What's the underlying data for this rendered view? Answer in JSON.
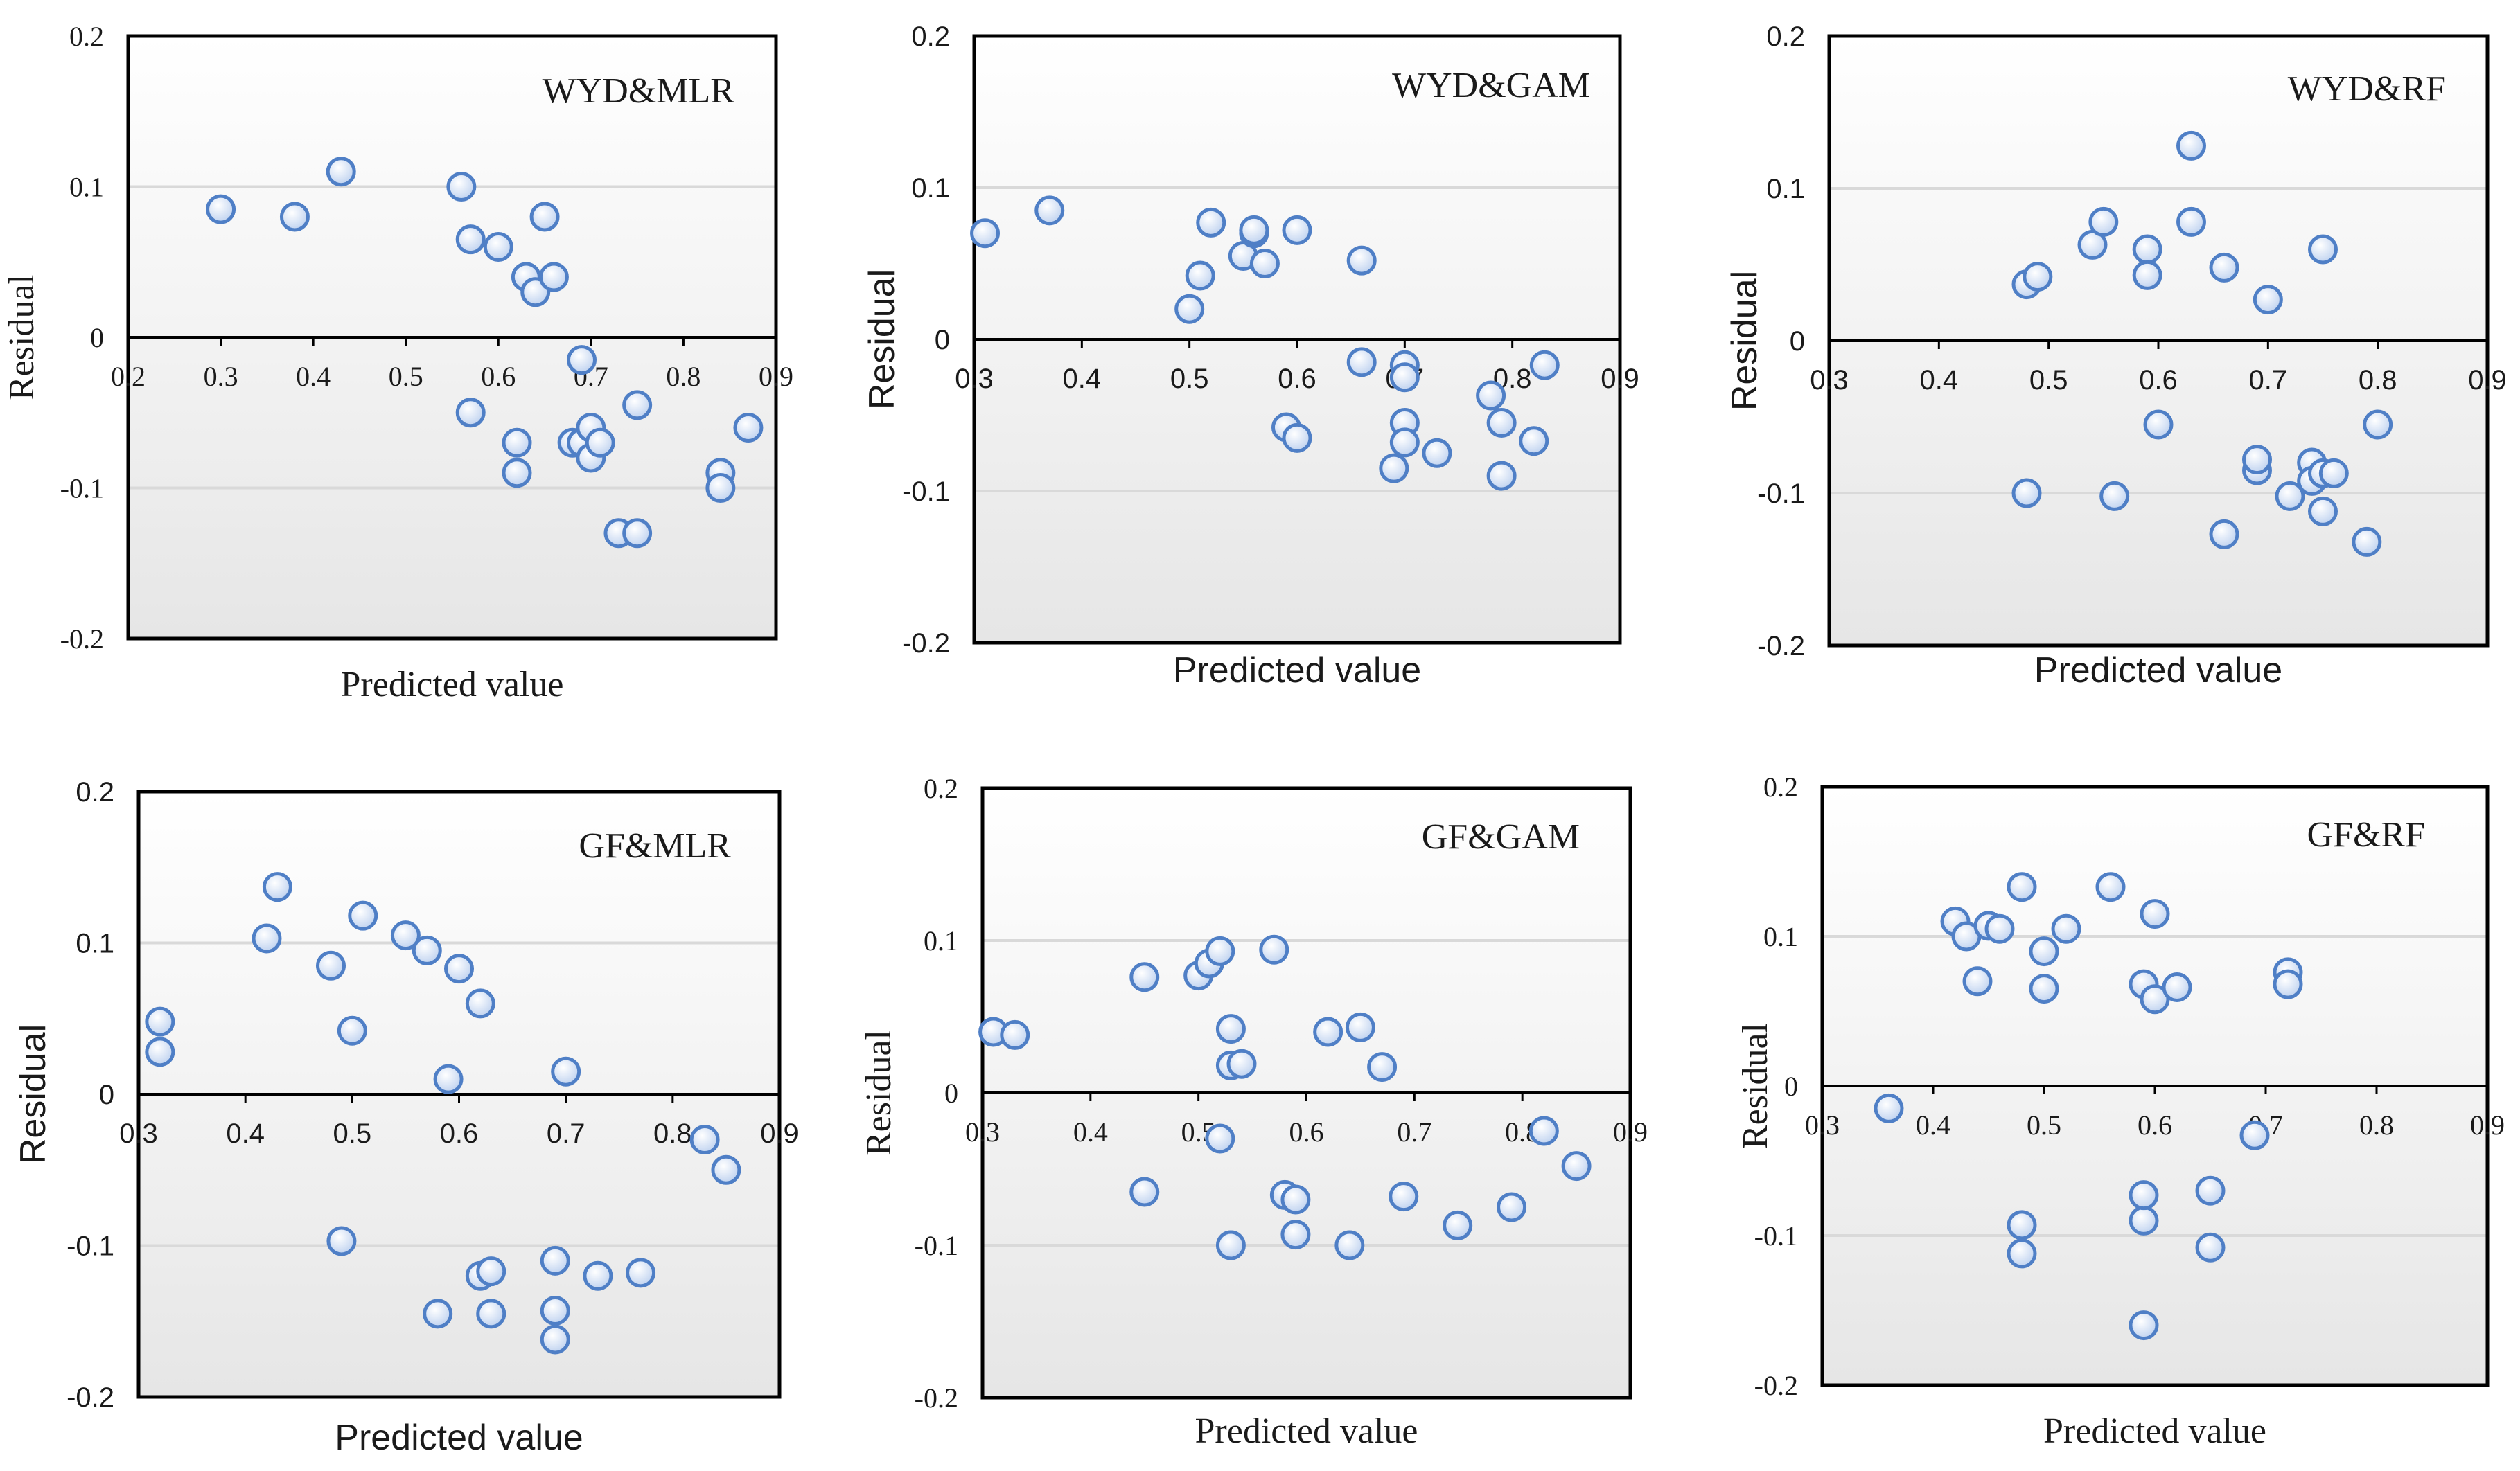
{
  "chart_data": [
    {
      "type": "scatter",
      "title": "WYD&MLR",
      "xlabel": "Predicted value",
      "ylabel": "Residual",
      "xlim": [
        0.2,
        0.9
      ],
      "ylim": [
        -0.2,
        0.2
      ],
      "xticks": [
        "0.2",
        "0.3",
        "0.4",
        "0.5",
        "0.6",
        "0.7",
        "0.8",
        "0.9"
      ],
      "yticks": [
        "0.2",
        "0.1",
        "0",
        "-0.1",
        "-0.2"
      ],
      "colors": {
        "marker_fill": "#cfdcf2",
        "marker_edge": "#4f7fc6",
        "gridline": "#d9d9d9"
      },
      "points": [
        {
          "x": 0.3,
          "y": 0.085
        },
        {
          "x": 0.38,
          "y": 0.08
        },
        {
          "x": 0.43,
          "y": 0.11
        },
        {
          "x": 0.56,
          "y": 0.1
        },
        {
          "x": 0.57,
          "y": 0.065
        },
        {
          "x": 0.6,
          "y": 0.06
        },
        {
          "x": 0.63,
          "y": 0.04
        },
        {
          "x": 0.64,
          "y": 0.03
        },
        {
          "x": 0.65,
          "y": 0.08
        },
        {
          "x": 0.66,
          "y": 0.04
        },
        {
          "x": 0.69,
          "y": -0.015
        },
        {
          "x": 0.57,
          "y": -0.05
        },
        {
          "x": 0.62,
          "y": -0.07
        },
        {
          "x": 0.62,
          "y": -0.09
        },
        {
          "x": 0.68,
          "y": -0.07
        },
        {
          "x": 0.69,
          "y": -0.07
        },
        {
          "x": 0.7,
          "y": -0.06
        },
        {
          "x": 0.7,
          "y": -0.08
        },
        {
          "x": 0.71,
          "y": -0.07
        },
        {
          "x": 0.75,
          "y": -0.045
        },
        {
          "x": 0.73,
          "y": -0.13
        },
        {
          "x": 0.75,
          "y": -0.13
        },
        {
          "x": 0.84,
          "y": -0.09
        },
        {
          "x": 0.84,
          "y": -0.1
        },
        {
          "x": 0.87,
          "y": -0.06
        }
      ]
    },
    {
      "type": "scatter",
      "title": "WYD&GAM",
      "xlabel": "Predicted value",
      "ylabel": "Residual",
      "xlim": [
        0.3,
        0.9
      ],
      "ylim": [
        -0.2,
        0.2
      ],
      "xticks": [
        "0.3",
        "0.4",
        "0.5",
        "0.6",
        "0.7",
        "0.8",
        "0.9"
      ],
      "yticks": [
        "0.2",
        "0.1",
        "0",
        "-0.1",
        "-0.2"
      ],
      "colors": {
        "marker_fill": "#cfdcf2",
        "marker_edge": "#4f7fc6",
        "gridline": "#d9d9d9"
      },
      "points": [
        {
          "x": 0.31,
          "y": 0.07
        },
        {
          "x": 0.37,
          "y": 0.085
        },
        {
          "x": 0.5,
          "y": 0.02
        },
        {
          "x": 0.51,
          "y": 0.042
        },
        {
          "x": 0.52,
          "y": 0.077
        },
        {
          "x": 0.55,
          "y": 0.055
        },
        {
          "x": 0.56,
          "y": 0.07
        },
        {
          "x": 0.56,
          "y": 0.072
        },
        {
          "x": 0.57,
          "y": 0.05
        },
        {
          "x": 0.6,
          "y": 0.072
        },
        {
          "x": 0.66,
          "y": 0.052
        },
        {
          "x": 0.66,
          "y": -0.015
        },
        {
          "x": 0.7,
          "y": -0.017
        },
        {
          "x": 0.7,
          "y": -0.025
        },
        {
          "x": 0.7,
          "y": -0.055
        },
        {
          "x": 0.7,
          "y": -0.068
        },
        {
          "x": 0.69,
          "y": -0.085
        },
        {
          "x": 0.73,
          "y": -0.075
        },
        {
          "x": 0.59,
          "y": -0.058
        },
        {
          "x": 0.6,
          "y": -0.065
        },
        {
          "x": 0.78,
          "y": -0.037
        },
        {
          "x": 0.79,
          "y": -0.055
        },
        {
          "x": 0.79,
          "y": -0.09
        },
        {
          "x": 0.83,
          "y": -0.017
        },
        {
          "x": 0.82,
          "y": -0.067
        }
      ]
    },
    {
      "type": "scatter",
      "title": "WYD&RF",
      "xlabel": "Predicted value",
      "ylabel": "Residual",
      "xlim": [
        0.3,
        0.9
      ],
      "ylim": [
        -0.2,
        0.2
      ],
      "xticks": [
        "0.3",
        "0.4",
        "0.5",
        "0.6",
        "0.7",
        "0.8",
        "0.9"
      ],
      "yticks": [
        "0.2",
        "0.1",
        "0",
        "-0.1",
        "-0.2"
      ],
      "colors": {
        "marker_fill": "#cfdcf2",
        "marker_edge": "#4f7fc6",
        "gridline": "#d9d9d9"
      },
      "points": [
        {
          "x": 0.48,
          "y": 0.037
        },
        {
          "x": 0.49,
          "y": 0.042
        },
        {
          "x": 0.54,
          "y": 0.063
        },
        {
          "x": 0.55,
          "y": 0.078
        },
        {
          "x": 0.59,
          "y": 0.06
        },
        {
          "x": 0.59,
          "y": 0.043
        },
        {
          "x": 0.63,
          "y": 0.078
        },
        {
          "x": 0.63,
          "y": 0.128
        },
        {
          "x": 0.66,
          "y": 0.048
        },
        {
          "x": 0.7,
          "y": 0.027
        },
        {
          "x": 0.75,
          "y": 0.06
        },
        {
          "x": 0.48,
          "y": -0.1
        },
        {
          "x": 0.56,
          "y": -0.102
        },
        {
          "x": 0.6,
          "y": -0.055
        },
        {
          "x": 0.66,
          "y": -0.127
        },
        {
          "x": 0.69,
          "y": -0.085
        },
        {
          "x": 0.69,
          "y": -0.078
        },
        {
          "x": 0.72,
          "y": -0.102
        },
        {
          "x": 0.74,
          "y": -0.08
        },
        {
          "x": 0.74,
          "y": -0.092
        },
        {
          "x": 0.75,
          "y": -0.087
        },
        {
          "x": 0.76,
          "y": -0.087
        },
        {
          "x": 0.75,
          "y": -0.112
        },
        {
          "x": 0.79,
          "y": -0.132
        },
        {
          "x": 0.8,
          "y": -0.055
        }
      ]
    },
    {
      "type": "scatter",
      "title": "GF&MLR",
      "xlabel": "Predicted value",
      "ylabel": "Residual",
      "xlim": [
        0.3,
        0.9
      ],
      "ylim": [
        -0.2,
        0.2
      ],
      "xticks": [
        "0.3",
        "0.4",
        "0.5",
        "0.6",
        "0.7",
        "0.8",
        "0.9"
      ],
      "yticks": [
        "0.2",
        "0.1",
        "0",
        "-0.1",
        "-0.2"
      ],
      "colors": {
        "marker_fill": "#cfdcf2",
        "marker_edge": "#4f7fc6",
        "gridline": "#d9d9d9"
      },
      "points": [
        {
          "x": 0.32,
          "y": 0.048
        },
        {
          "x": 0.32,
          "y": 0.028
        },
        {
          "x": 0.42,
          "y": 0.103
        },
        {
          "x": 0.43,
          "y": 0.137
        },
        {
          "x": 0.48,
          "y": 0.085
        },
        {
          "x": 0.5,
          "y": 0.042
        },
        {
          "x": 0.51,
          "y": 0.118
        },
        {
          "x": 0.55,
          "y": 0.105
        },
        {
          "x": 0.57,
          "y": 0.095
        },
        {
          "x": 0.6,
          "y": 0.083
        },
        {
          "x": 0.62,
          "y": 0.06
        },
        {
          "x": 0.59,
          "y": 0.01
        },
        {
          "x": 0.7,
          "y": 0.015
        },
        {
          "x": 0.49,
          "y": -0.097
        },
        {
          "x": 0.58,
          "y": -0.145
        },
        {
          "x": 0.62,
          "y": -0.12
        },
        {
          "x": 0.63,
          "y": -0.117
        },
        {
          "x": 0.63,
          "y": -0.145
        },
        {
          "x": 0.69,
          "y": -0.11
        },
        {
          "x": 0.69,
          "y": -0.143
        },
        {
          "x": 0.69,
          "y": -0.162
        },
        {
          "x": 0.73,
          "y": -0.12
        },
        {
          "x": 0.77,
          "y": -0.118
        },
        {
          "x": 0.83,
          "y": -0.03
        },
        {
          "x": 0.85,
          "y": -0.05
        }
      ]
    },
    {
      "type": "scatter",
      "title": "GF&GAM",
      "xlabel": "Predicted value",
      "ylabel": "Residual",
      "xlim": [
        0.3,
        0.9
      ],
      "ylim": [
        -0.2,
        0.2
      ],
      "xticks": [
        "0.3",
        "0.4",
        "0.5",
        "0.6",
        "0.7",
        "0.8",
        "0.9"
      ],
      "yticks": [
        "0.2",
        "0.1",
        "0",
        "-0.1",
        "-0.2"
      ],
      "colors": {
        "marker_fill": "#cfdcf2",
        "marker_edge": "#4f7fc6",
        "gridline": "#d9d9d9"
      },
      "points": [
        {
          "x": 0.31,
          "y": 0.04
        },
        {
          "x": 0.33,
          "y": 0.038
        },
        {
          "x": 0.45,
          "y": 0.076
        },
        {
          "x": 0.5,
          "y": 0.077
        },
        {
          "x": 0.51,
          "y": 0.085
        },
        {
          "x": 0.52,
          "y": 0.093
        },
        {
          "x": 0.53,
          "y": 0.042
        },
        {
          "x": 0.53,
          "y": 0.018
        },
        {
          "x": 0.54,
          "y": 0.019
        },
        {
          "x": 0.57,
          "y": 0.094
        },
        {
          "x": 0.62,
          "y": 0.04
        },
        {
          "x": 0.65,
          "y": 0.043
        },
        {
          "x": 0.67,
          "y": 0.017
        },
        {
          "x": 0.45,
          "y": -0.065
        },
        {
          "x": 0.52,
          "y": -0.03
        },
        {
          "x": 0.53,
          "y": -0.1
        },
        {
          "x": 0.58,
          "y": -0.067
        },
        {
          "x": 0.59,
          "y": -0.07
        },
        {
          "x": 0.59,
          "y": -0.093
        },
        {
          "x": 0.64,
          "y": -0.1
        },
        {
          "x": 0.69,
          "y": -0.068
        },
        {
          "x": 0.74,
          "y": -0.087
        },
        {
          "x": 0.79,
          "y": -0.075
        },
        {
          "x": 0.82,
          "y": -0.025
        },
        {
          "x": 0.85,
          "y": -0.048
        }
      ]
    },
    {
      "type": "scatter",
      "title": "GF&RF",
      "xlabel": "Predicted value",
      "ylabel": "Residual",
      "xlim": [
        0.3,
        0.9
      ],
      "ylim": [
        -0.2,
        0.2
      ],
      "xticks": [
        "0.3",
        "0.4",
        "0.5",
        "0.6",
        "0.7",
        "0.8",
        "0.9"
      ],
      "yticks": [
        "0.2",
        "0.1",
        "0",
        "-0.1",
        "-0.2"
      ],
      "colors": {
        "marker_fill": "#cfdcf2",
        "marker_edge": "#4f7fc6",
        "gridline": "#d9d9d9"
      },
      "points": [
        {
          "x": 0.36,
          "y": -0.015
        },
        {
          "x": 0.42,
          "y": 0.11
        },
        {
          "x": 0.43,
          "y": 0.1
        },
        {
          "x": 0.44,
          "y": 0.07
        },
        {
          "x": 0.45,
          "y": 0.107
        },
        {
          "x": 0.46,
          "y": 0.105
        },
        {
          "x": 0.48,
          "y": 0.133
        },
        {
          "x": 0.5,
          "y": 0.09
        },
        {
          "x": 0.5,
          "y": 0.065
        },
        {
          "x": 0.52,
          "y": 0.105
        },
        {
          "x": 0.56,
          "y": 0.133
        },
        {
          "x": 0.59,
          "y": 0.068
        },
        {
          "x": 0.6,
          "y": 0.058
        },
        {
          "x": 0.6,
          "y": 0.115
        },
        {
          "x": 0.62,
          "y": 0.066
        },
        {
          "x": 0.72,
          "y": 0.076
        },
        {
          "x": 0.72,
          "y": 0.068
        },
        {
          "x": 0.69,
          "y": -0.033
        },
        {
          "x": 0.48,
          "y": -0.093
        },
        {
          "x": 0.48,
          "y": -0.112
        },
        {
          "x": 0.59,
          "y": -0.09
        },
        {
          "x": 0.59,
          "y": -0.073
        },
        {
          "x": 0.59,
          "y": -0.16
        },
        {
          "x": 0.65,
          "y": -0.07
        },
        {
          "x": 0.65,
          "y": -0.108
        }
      ]
    }
  ]
}
